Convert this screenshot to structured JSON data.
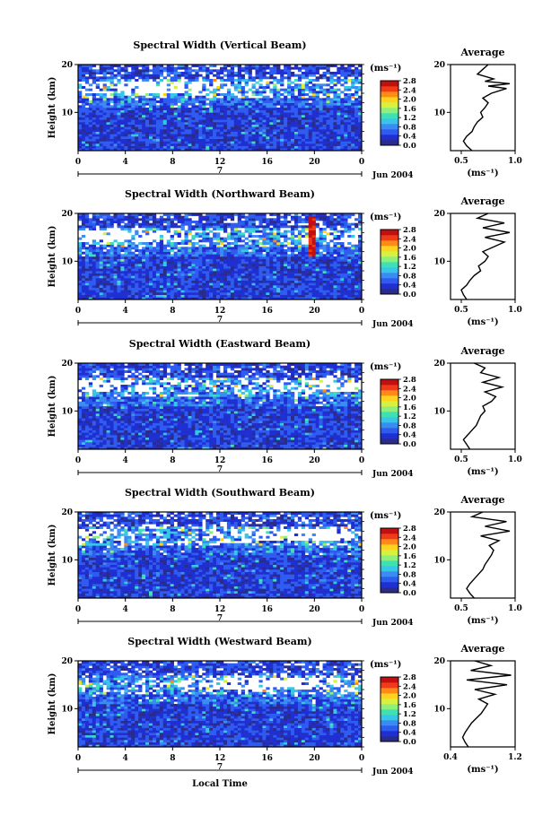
{
  "chart_data": [
    {
      "type": "heatmap",
      "title": "Spectral Width (Vertical Beam)",
      "ylabel": "Height (km)",
      "ylim": [
        2,
        20
      ],
      "yticks": [
        "10",
        "20"
      ],
      "xticks": [
        "0",
        "4",
        "8",
        "12",
        "16",
        "20",
        "0"
      ],
      "xlim": [
        0,
        24
      ],
      "date_marker": "7",
      "date_label": "Jun 2004",
      "colorbar": {
        "unit": "(ms⁻¹)",
        "ticks": [
          "0.0",
          "0.4",
          "0.8",
          "1.2",
          "1.6",
          "2.0",
          "2.4",
          "2.8"
        ],
        "range": [
          0,
          2.8
        ]
      },
      "grid": false,
      "average_profile": {
        "title": "Average",
        "xlabel": "(ms⁻¹)",
        "xticks": [
          "0.5",
          "1.0"
        ],
        "xlim": [
          0.4,
          1.0
        ],
        "yticks": [
          "10",
          "20"
        ],
        "height_km": [
          2,
          3,
          4,
          5,
          6,
          7,
          8,
          9,
          10,
          11,
          12,
          13,
          14,
          15,
          15.5,
          16,
          16.5,
          17,
          18,
          19,
          20
        ],
        "width": [
          0.6,
          0.55,
          0.52,
          0.55,
          0.6,
          0.62,
          0.65,
          0.7,
          0.68,
          0.72,
          0.75,
          0.7,
          0.78,
          0.92,
          0.75,
          0.95,
          0.72,
          0.8,
          0.65,
          0.7,
          0.75
        ]
      }
    },
    {
      "type": "heatmap",
      "title": "Spectral Width (Northward Beam)",
      "ylabel": "Height (km)",
      "ylim": [
        2,
        20
      ],
      "yticks": [
        "10",
        "20"
      ],
      "xticks": [
        "0",
        "4",
        "8",
        "12",
        "16",
        "20",
        "0"
      ],
      "xlim": [
        0,
        24
      ],
      "date_marker": "7",
      "date_label": "Jun 2004",
      "colorbar": {
        "unit": "(ms⁻¹)",
        "ticks": [
          "0.0",
          "0.4",
          "0.8",
          "1.2",
          "1.6",
          "2.0",
          "2.4",
          "2.8"
        ],
        "range": [
          0,
          2.8
        ]
      },
      "grid": false,
      "average_profile": {
        "title": "Average",
        "xlabel": "(ms⁻¹)",
        "xticks": [
          "0.5",
          "1.0"
        ],
        "xlim": [
          0.4,
          1.0
        ],
        "yticks": [
          "10",
          "20"
        ],
        "height_km": [
          2,
          3,
          4,
          5,
          6,
          7,
          8,
          9,
          10,
          11,
          12,
          13,
          14,
          15,
          16,
          17,
          18,
          19,
          20
        ],
        "width": [
          0.55,
          0.52,
          0.5,
          0.55,
          0.58,
          0.62,
          0.68,
          0.66,
          0.72,
          0.75,
          0.7,
          0.8,
          0.9,
          0.72,
          0.95,
          0.7,
          0.9,
          0.65,
          0.75
        ]
      }
    },
    {
      "type": "heatmap",
      "title": "Spectral Width (Eastward Beam)",
      "ylabel": "Height (km)",
      "ylim": [
        2,
        20
      ],
      "yticks": [
        "10",
        "20"
      ],
      "xticks": [
        "0",
        "4",
        "8",
        "12",
        "16",
        "20",
        "0"
      ],
      "xlim": [
        0,
        24
      ],
      "date_marker": "7",
      "date_label": "Jun 2004",
      "colorbar": {
        "unit": "(ms⁻¹)",
        "ticks": [
          "0.0",
          "0.4",
          "0.8",
          "1.2",
          "1.6",
          "2.0",
          "2.4",
          "2.8"
        ],
        "range": [
          0,
          2.8
        ]
      },
      "grid": false,
      "average_profile": {
        "title": "Average",
        "xlabel": "(ms⁻¹)",
        "xticks": [
          "0.5",
          "1.0"
        ],
        "xlim": [
          0.4,
          1.0
        ],
        "yticks": [
          "10",
          "20"
        ],
        "height_km": [
          2,
          3,
          4,
          5,
          6,
          7,
          8,
          9,
          10,
          11,
          12,
          13,
          14,
          15,
          16,
          17,
          18,
          19,
          20
        ],
        "width": [
          0.58,
          0.55,
          0.52,
          0.56,
          0.6,
          0.64,
          0.66,
          0.68,
          0.72,
          0.7,
          0.78,
          0.82,
          0.72,
          0.88,
          0.7,
          0.85,
          0.68,
          0.72,
          0.62
        ]
      }
    },
    {
      "type": "heatmap",
      "title": "Spectral Width (Southward Beam)",
      "ylabel": "Height (km)",
      "ylim": [
        2,
        20
      ],
      "yticks": [
        "10",
        "20"
      ],
      "xticks": [
        "0",
        "4",
        "8",
        "12",
        "16",
        "20",
        "0"
      ],
      "xlim": [
        0,
        24
      ],
      "date_marker": "7",
      "date_label": "Jun 2004",
      "colorbar": {
        "unit": "(ms⁻¹)",
        "ticks": [
          "0.0",
          "0.4",
          "0.8",
          "1.2",
          "1.6",
          "2.0",
          "2.4",
          "2.8"
        ],
        "range": [
          0,
          2.8
        ]
      },
      "grid": false,
      "average_profile": {
        "title": "Average",
        "xlabel": "(ms⁻¹)",
        "xticks": [
          "0.5",
          "1.0"
        ],
        "xlim": [
          0.4,
          1.0
        ],
        "yticks": [
          "10",
          "20"
        ],
        "height_km": [
          2,
          3,
          4,
          5,
          6,
          7,
          8,
          9,
          10,
          11,
          12,
          13,
          14,
          15,
          16,
          17,
          18,
          19,
          20
        ],
        "width": [
          0.62,
          0.58,
          0.55,
          0.58,
          0.62,
          0.66,
          0.7,
          0.72,
          0.75,
          0.78,
          0.8,
          0.76,
          0.85,
          0.68,
          0.95,
          0.72,
          0.92,
          0.6,
          0.7
        ]
      }
    },
    {
      "type": "heatmap",
      "title": "Spectral Width (Westward Beam)",
      "ylabel": "Height (km)",
      "ylim": [
        2,
        20
      ],
      "yticks": [
        "10",
        "20"
      ],
      "xticks": [
        "0",
        "4",
        "8",
        "12",
        "16",
        "20",
        "0"
      ],
      "xlim": [
        0,
        24
      ],
      "xlabel": "Local Time",
      "date_marker": "7",
      "date_label": "Jun 2004",
      "colorbar": {
        "unit": "(ms⁻¹)",
        "ticks": [
          "0.0",
          "0.4",
          "0.8",
          "1.2",
          "1.6",
          "2.0",
          "2.4",
          "2.8"
        ],
        "range": [
          0,
          2.8
        ]
      },
      "grid": false,
      "average_profile": {
        "title": "Average",
        "xlabel": "(ms⁻¹)",
        "xticks": [
          "0.4",
          "1.2"
        ],
        "xlim": [
          0.4,
          1.2
        ],
        "yticks": [
          "10",
          "20"
        ],
        "height_km": [
          2,
          3,
          4,
          5,
          6,
          7,
          8,
          9,
          10,
          11,
          12,
          13,
          14,
          15,
          16,
          17,
          18,
          19,
          20
        ],
        "width": [
          0.62,
          0.58,
          0.55,
          0.58,
          0.62,
          0.66,
          0.72,
          0.78,
          0.82,
          0.86,
          0.75,
          0.95,
          0.7,
          1.1,
          0.6,
          1.15,
          0.65,
          0.9,
          0.7
        ]
      }
    }
  ],
  "colors": {
    "colormap": [
      "#2b2b8a",
      "#1f2fd0",
      "#2f5cf0",
      "#3b8cf2",
      "#38c6e8",
      "#3fe0b4",
      "#8ef07a",
      "#d8f040",
      "#ffd21e",
      "#ff8a18",
      "#f03a18",
      "#c01010"
    ],
    "ink": "#000000",
    "background": "#ffffff"
  }
}
